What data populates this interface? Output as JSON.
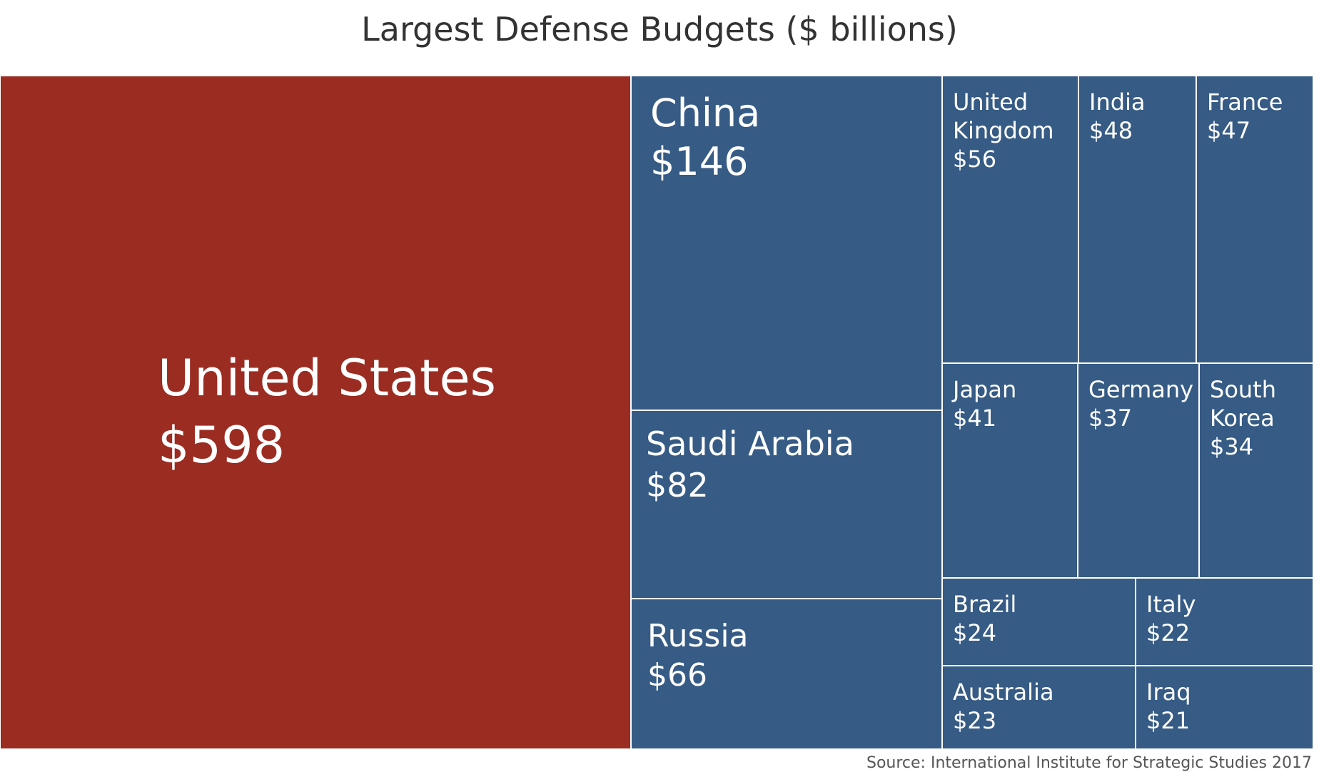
{
  "colors": {
    "highlight": "#9b2c22",
    "base": "#365b84",
    "title": "#333333"
  },
  "chart_data": {
    "type": "treemap",
    "title": "Largest Defense Budgets ($ billions)",
    "unit": "$ billions",
    "items": [
      {
        "name": "United States",
        "value": 598,
        "label": "$598",
        "highlight": true
      },
      {
        "name": "China",
        "value": 146,
        "label": "$146"
      },
      {
        "name": "Saudi Arabia",
        "value": 82,
        "label": "$82"
      },
      {
        "name": "Russia",
        "value": 66,
        "label": "$66"
      },
      {
        "name": "United Kingdom",
        "value": 56,
        "label": "$56"
      },
      {
        "name": "India",
        "value": 48,
        "label": "$48"
      },
      {
        "name": "France",
        "value": 47,
        "label": "$47"
      },
      {
        "name": "Japan",
        "value": 41,
        "label": "$41"
      },
      {
        "name": "Germany",
        "value": 37,
        "label": "$37"
      },
      {
        "name": "South Korea",
        "value": 34,
        "label": "$34"
      },
      {
        "name": "Brazil",
        "value": 24,
        "label": "$24"
      },
      {
        "name": "Italy",
        "value": 22,
        "label": "$22"
      },
      {
        "name": "Australia",
        "value": 23,
        "label": "$23"
      },
      {
        "name": "Iraq",
        "value": 21,
        "label": "$21"
      }
    ],
    "source": "Source: International Institute for Strategic Studies 2017"
  }
}
